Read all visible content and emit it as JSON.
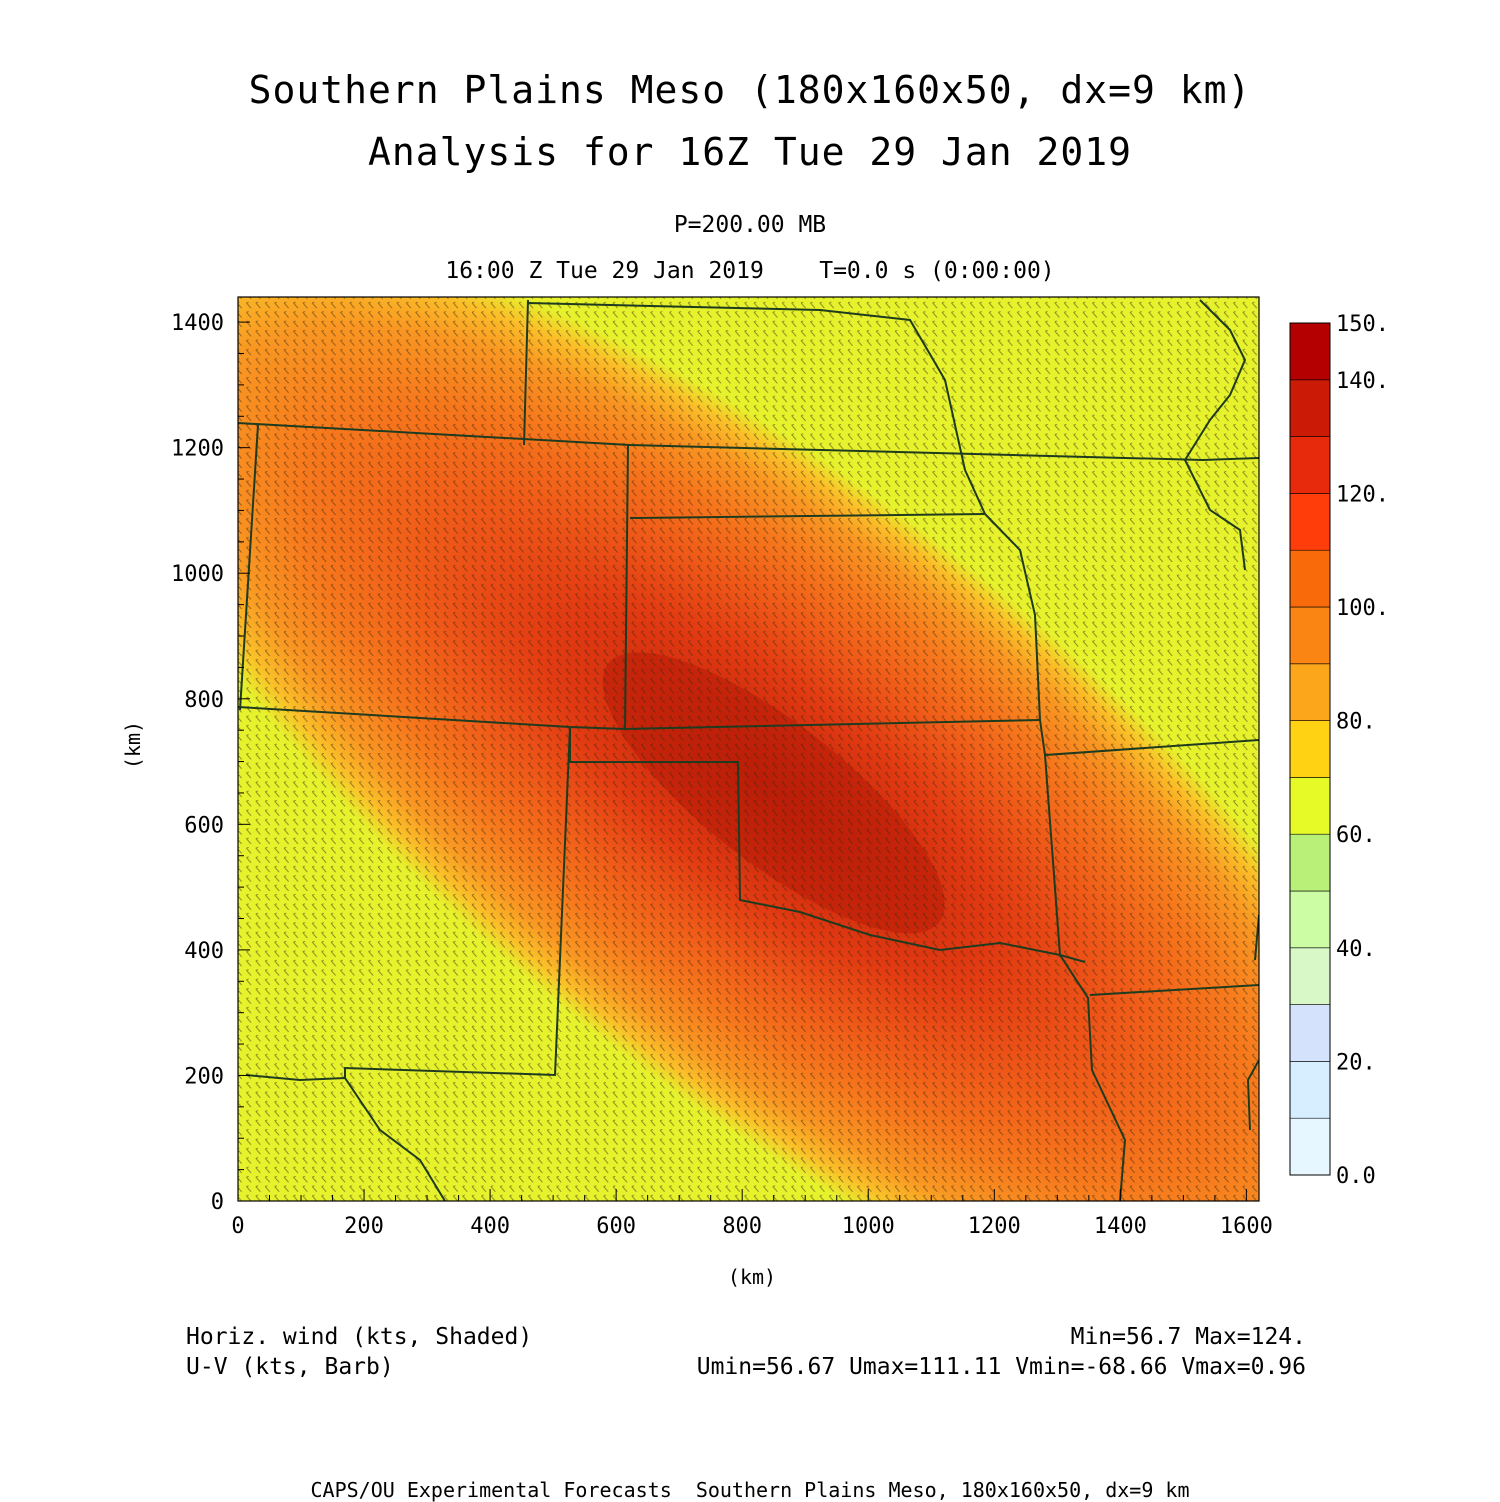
{
  "header": {
    "title_line1": "Southern Plains Meso (180x160x50, dx=9 km)",
    "title_line2": "Analysis for 16Z Tue 29 Jan 2019",
    "level": "P=200.00 MB",
    "time_line": "16:00 Z Tue 29 Jan 2019    T=0.0 s (0:00:00)"
  },
  "chart_data": {
    "type": "heatmap",
    "x_axis": {
      "label": "(km)",
      "range": [
        0,
        1620
      ],
      "ticks": [
        "0",
        "200",
        "400",
        "600",
        "800",
        "1000",
        "1200",
        "1400",
        "1600"
      ]
    },
    "y_axis": {
      "label": "(km)",
      "range": [
        0,
        1440
      ],
      "ticks": [
        "0",
        "200",
        "400",
        "600",
        "800",
        "1000",
        "1200",
        "1400"
      ]
    },
    "field": {
      "core_km": {
        "x": 850,
        "y": 650
      },
      "jet_axis_direction": "northwest to southeast",
      "max": 124.0,
      "min": 56.7
    },
    "colorbar": {
      "ticks": [
        "0.0",
        "20.",
        "40.",
        "60.",
        "80.",
        "100.",
        "120.",
        "140.",
        "150."
      ],
      "colors": [
        "#e6f7ff",
        "#d6eeff",
        "#d4e2fc",
        "#d8f8c8",
        "#ccfca4",
        "#b8f078",
        "#e6fa28",
        "#ffd214",
        "#fca61c",
        "#fb8513",
        "#f86a0a",
        "#ff3d0b",
        "#e72a0c",
        "#cb1a05",
        "#b40000"
      ]
    }
  },
  "legend": {
    "left_line1": "Horiz. wind (kts, Shaded)",
    "left_line2": "U-V (kts, Barb)",
    "right_line1": "Min=56.7 Max=124.",
    "right_line2": "Umin=56.67 Umax=111.11 Vmin=-68.66 Vmax=0.96"
  },
  "footer": {
    "text": "CAPS/OU Experimental Forecasts  Southern Plains Meso, 180x160x50, dx=9 km"
  }
}
